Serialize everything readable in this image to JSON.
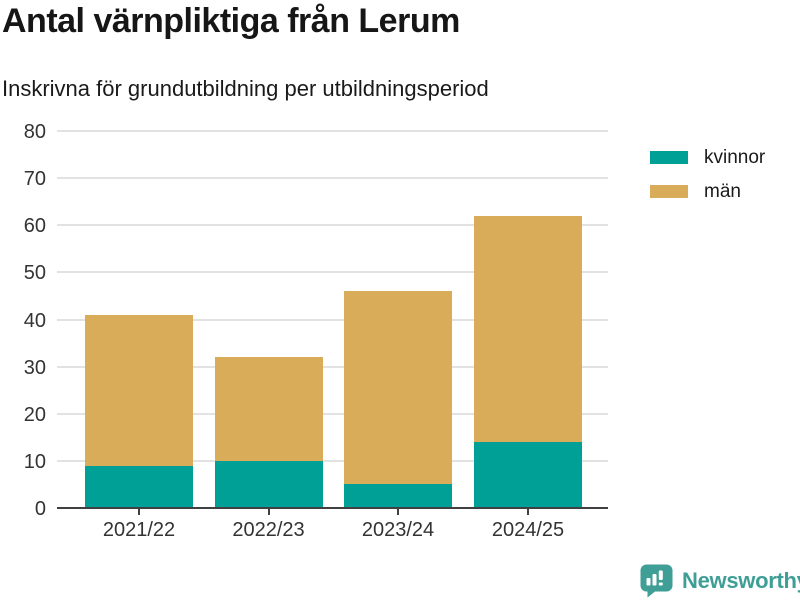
{
  "header": {
    "title": "Antal värnpliktiga från Lerum",
    "subtitle": "Inskrivna för grundutbildning per utbildningsperiod"
  },
  "chart_data": {
    "type": "bar",
    "stacked": true,
    "title": "Antal värnpliktiga från Lerum",
    "subtitle": "Inskrivna för grundutbildning per utbildningsperiod",
    "categories": [
      "2021/22",
      "2022/23",
      "2023/24",
      "2024/25"
    ],
    "series": [
      {
        "name": "kvinnor",
        "color": "#00a096",
        "values": [
          9,
          10,
          5,
          14
        ]
      },
      {
        "name": "män",
        "color": "#d9ac5a",
        "values": [
          32,
          22,
          41,
          48
        ]
      }
    ],
    "stack_totals": [
      41,
      32,
      46,
      62
    ],
    "xlabel": "",
    "ylabel": "",
    "ylim": [
      0,
      80
    ],
    "ytick_step": 10,
    "grid": true,
    "legend_position": "top-right"
  },
  "footer": {
    "brand": "Newsworthy",
    "logo_icon": "bar-chart-speech-bubble-icon"
  },
  "colors": {
    "brand": "#3f9e96",
    "axis_text": "#333333",
    "gridline": "#e2e2e2",
    "axis_line": "#404040",
    "title_text": "#161616",
    "background": "#ffffff"
  }
}
